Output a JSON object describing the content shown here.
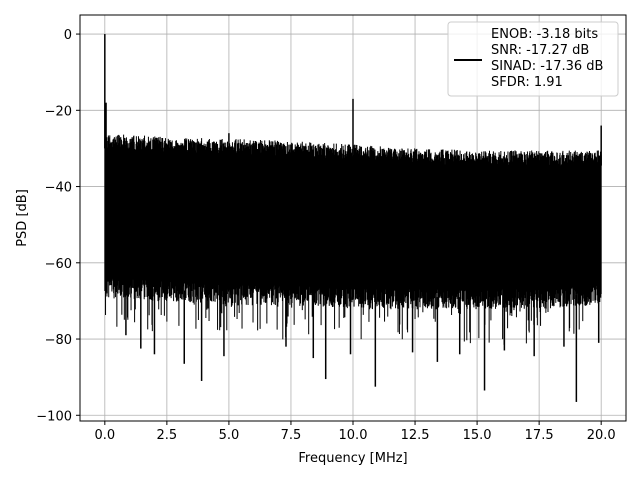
{
  "chart_data": {
    "type": "line",
    "title": "",
    "xlabel": "Frequency [MHz]",
    "ylabel": "PSD [dB]",
    "xlim": [
      -1.0,
      21.0
    ],
    "ylim": [
      -101.5,
      5.0
    ],
    "xticks": [
      0.0,
      2.5,
      5.0,
      7.5,
      10.0,
      12.5,
      15.0,
      17.5,
      20.0
    ],
    "xtick_labels": [
      "0.0",
      "2.5",
      "5.0",
      "7.5",
      "10.0",
      "12.5",
      "15.0",
      "17.5",
      "20.0"
    ],
    "yticks": [
      0,
      -20,
      -40,
      -60,
      -80,
      -100
    ],
    "ytick_labels": [
      "0",
      "−20",
      "−40",
      "−60",
      "−80",
      "−100"
    ],
    "grid": true,
    "legend": {
      "placement": "upper right",
      "entries": [
        "ENOB: -3.18 bits",
        "SNR: -17.27 dB",
        "SINAD: -17.36 dB",
        "SFDR: 1.91"
      ]
    },
    "series": [
      {
        "color": "#000000",
        "style": "noise-band",
        "x_range": [
          0.0,
          20.0
        ],
        "upper_envelope": {
          "x": [
            0.0,
            2.5,
            5.0,
            7.5,
            10.0,
            12.5,
            15.0,
            17.5,
            20.0
          ],
          "y": [
            -28,
            -29,
            -29.5,
            -30,
            -31,
            -32,
            -32.5,
            -32.5,
            -32.5
          ]
        },
        "lower_envelope": {
          "x": [
            0.0,
            2.5,
            5.0,
            7.5,
            10.0,
            12.5,
            15.0,
            17.5,
            20.0
          ],
          "y": [
            -68,
            -69,
            -70,
            -70,
            -71,
            -71,
            -71,
            -71,
            -70
          ]
        },
        "peaks": [
          {
            "x": 0.0,
            "y": 0
          },
          {
            "x": 0.05,
            "y": -18
          },
          {
            "x": 5.0,
            "y": -26
          },
          {
            "x": 10.0,
            "y": -17
          },
          {
            "x": 20.0,
            "y": -24
          }
        ],
        "deep_dips": [
          {
            "x": 0.85,
            "y": -79
          },
          {
            "x": 1.45,
            "y": -82.5
          },
          {
            "x": 2.0,
            "y": -84
          },
          {
            "x": 3.2,
            "y": -86.5
          },
          {
            "x": 3.9,
            "y": -91
          },
          {
            "x": 4.8,
            "y": -84.5
          },
          {
            "x": 7.3,
            "y": -82
          },
          {
            "x": 8.4,
            "y": -85
          },
          {
            "x": 8.9,
            "y": -90.5
          },
          {
            "x": 9.9,
            "y": -84
          },
          {
            "x": 10.9,
            "y": -92.5
          },
          {
            "x": 12.4,
            "y": -83.5
          },
          {
            "x": 13.4,
            "y": -86
          },
          {
            "x": 14.3,
            "y": -84
          },
          {
            "x": 15.3,
            "y": -93.5
          },
          {
            "x": 16.1,
            "y": -83
          },
          {
            "x": 17.3,
            "y": -84.5
          },
          {
            "x": 18.5,
            "y": -82
          },
          {
            "x": 19.0,
            "y": -96.5
          },
          {
            "x": 19.9,
            "y": -81
          }
        ]
      }
    ]
  }
}
